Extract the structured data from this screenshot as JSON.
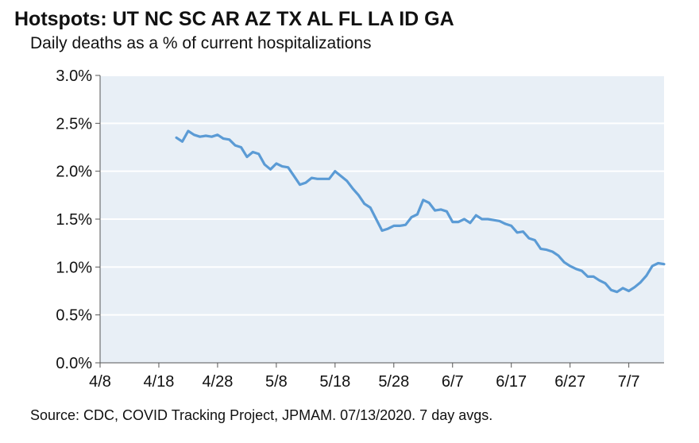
{
  "chart_data": {
    "type": "line",
    "title": "Hotspots: UT NC SC AR AZ TX AL FL LA ID GA",
    "subtitle": "Daily deaths as a % of current hospitalizations",
    "source": "Source: CDC, COVID Tracking Project, JPMAM. 07/13/2020. 7 day avgs.",
    "xlabel": "",
    "ylabel": "",
    "x_ticks": [
      "4/8",
      "4/18",
      "4/28",
      "5/8",
      "5/18",
      "5/28",
      "6/7",
      "6/17",
      "6/27",
      "7/7"
    ],
    "y_ticks": [
      "0.0%",
      "0.5%",
      "1.0%",
      "1.5%",
      "2.0%",
      "2.5%",
      "3.0%"
    ],
    "ylim": [
      0,
      3.0
    ],
    "x_range_days": [
      0,
      96
    ],
    "grid": true,
    "series": [
      {
        "name": "Daily deaths as a % of current hospitalizations",
        "color": "#5b9bd5",
        "x_days": [
          13,
          14,
          15,
          16,
          17,
          18,
          19,
          20,
          21,
          22,
          23,
          24,
          25,
          26,
          27,
          28,
          29,
          30,
          31,
          32,
          33,
          34,
          35,
          36,
          37,
          38,
          39,
          40,
          41,
          42,
          43,
          44,
          45,
          46,
          47,
          48,
          49,
          50,
          51,
          52,
          53,
          54,
          55,
          56,
          57,
          58,
          59,
          60,
          61,
          62,
          63,
          64,
          65,
          66,
          67,
          68,
          69,
          70,
          71,
          72,
          73,
          74,
          75,
          76,
          77,
          78,
          79,
          80,
          81,
          82,
          83,
          84,
          85,
          86,
          87,
          88,
          89,
          90,
          91,
          92,
          93,
          94,
          95,
          96
        ],
        "values": [
          2.35,
          2.31,
          2.42,
          2.38,
          2.36,
          2.37,
          2.36,
          2.38,
          2.34,
          2.33,
          2.27,
          2.25,
          2.15,
          2.2,
          2.18,
          2.07,
          2.02,
          2.08,
          2.05,
          2.04,
          1.95,
          1.86,
          1.88,
          1.93,
          1.92,
          1.92,
          1.92,
          2.0,
          1.95,
          1.9,
          1.82,
          1.75,
          1.66,
          1.62,
          1.5,
          1.38,
          1.4,
          1.43,
          1.43,
          1.44,
          1.52,
          1.55,
          1.7,
          1.67,
          1.59,
          1.6,
          1.58,
          1.47,
          1.47,
          1.5,
          1.46,
          1.54,
          1.5,
          1.5,
          1.49,
          1.48,
          1.45,
          1.43,
          1.36,
          1.37,
          1.3,
          1.28,
          1.19,
          1.18,
          1.16,
          1.12,
          1.05,
          1.01,
          0.98,
          0.96,
          0.9,
          0.9,
          0.86,
          0.83,
          0.76,
          0.74,
          0.78,
          0.75,
          0.79,
          0.84,
          0.91,
          1.01,
          1.04,
          1.03
        ]
      }
    ]
  }
}
